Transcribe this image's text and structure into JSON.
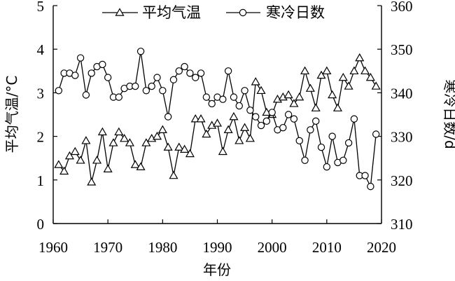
{
  "chart_data": {
    "type": "line",
    "x": [
      1961,
      1962,
      1963,
      1964,
      1965,
      1966,
      1967,
      1968,
      1969,
      1970,
      1971,
      1972,
      1973,
      1974,
      1975,
      1976,
      1977,
      1978,
      1979,
      1980,
      1981,
      1982,
      1983,
      1984,
      1985,
      1986,
      1987,
      1988,
      1989,
      1990,
      1991,
      1992,
      1993,
      1994,
      1995,
      1996,
      1997,
      1998,
      1999,
      2000,
      2001,
      2002,
      2003,
      2004,
      2005,
      2006,
      2007,
      2008,
      2009,
      2010,
      2011,
      2012,
      2013,
      2014,
      2015,
      2016,
      2017,
      2018,
      2019
    ],
    "series": [
      {
        "name": "平均气温",
        "axis": "left",
        "marker": "triangle",
        "values": [
          1.35,
          1.2,
          1.55,
          1.65,
          1.45,
          1.9,
          0.95,
          1.45,
          2.1,
          1.25,
          1.85,
          2.1,
          1.95,
          1.85,
          1.35,
          1.3,
          1.85,
          1.95,
          2.0,
          2.15,
          1.75,
          1.1,
          1.75,
          1.7,
          1.6,
          2.4,
          2.4,
          2.05,
          2.25,
          2.3,
          1.65,
          2.15,
          2.45,
          1.9,
          2.2,
          1.95,
          3.25,
          3.05,
          2.55,
          2.5,
          2.85,
          2.9,
          2.95,
          2.75,
          2.9,
          3.5,
          3.1,
          2.65,
          3.4,
          3.5,
          2.95,
          2.65,
          3.35,
          3.15,
          3.5,
          3.8,
          3.5,
          3.35,
          3.15
        ]
      },
      {
        "name": "寒冷日数",
        "axis": "right",
        "marker": "circle",
        "values": [
          340.5,
          344.5,
          344.5,
          344,
          348,
          339.5,
          344.5,
          346,
          346.5,
          343.5,
          339,
          339,
          341,
          341.5,
          341.5,
          349.5,
          340.5,
          341.5,
          343.5,
          340.5,
          334.5,
          343,
          345,
          346,
          344.5,
          343.5,
          344.5,
          339,
          337.5,
          339,
          338.5,
          345,
          339,
          337,
          340.5,
          336,
          334.5,
          332.5,
          333.5,
          335.5,
          331.5,
          332,
          335,
          334,
          329,
          324.5,
          331.5,
          333.5,
          327.5,
          323,
          330,
          324,
          324.5,
          328.5,
          334,
          321,
          321,
          318.5,
          330.5
        ]
      }
    ],
    "xlabel": "年份",
    "ylabel_left": "平均气温/°C",
    "ylabel_right": "寒冷日数/d",
    "xlim": [
      1960,
      2020
    ],
    "ylim_left": [
      0,
      5
    ],
    "ylim_right": [
      310,
      360
    ],
    "xticks": [
      "1960",
      "1970",
      "1980",
      "1990",
      "2000",
      "2010",
      "2020"
    ],
    "yticks_left": [
      "0",
      "1",
      "2",
      "3",
      "4",
      "5"
    ],
    "yticks_right": [
      "310",
      "320",
      "330",
      "340",
      "350",
      "360"
    ],
    "grid": false,
    "legend_position": "top-center"
  }
}
